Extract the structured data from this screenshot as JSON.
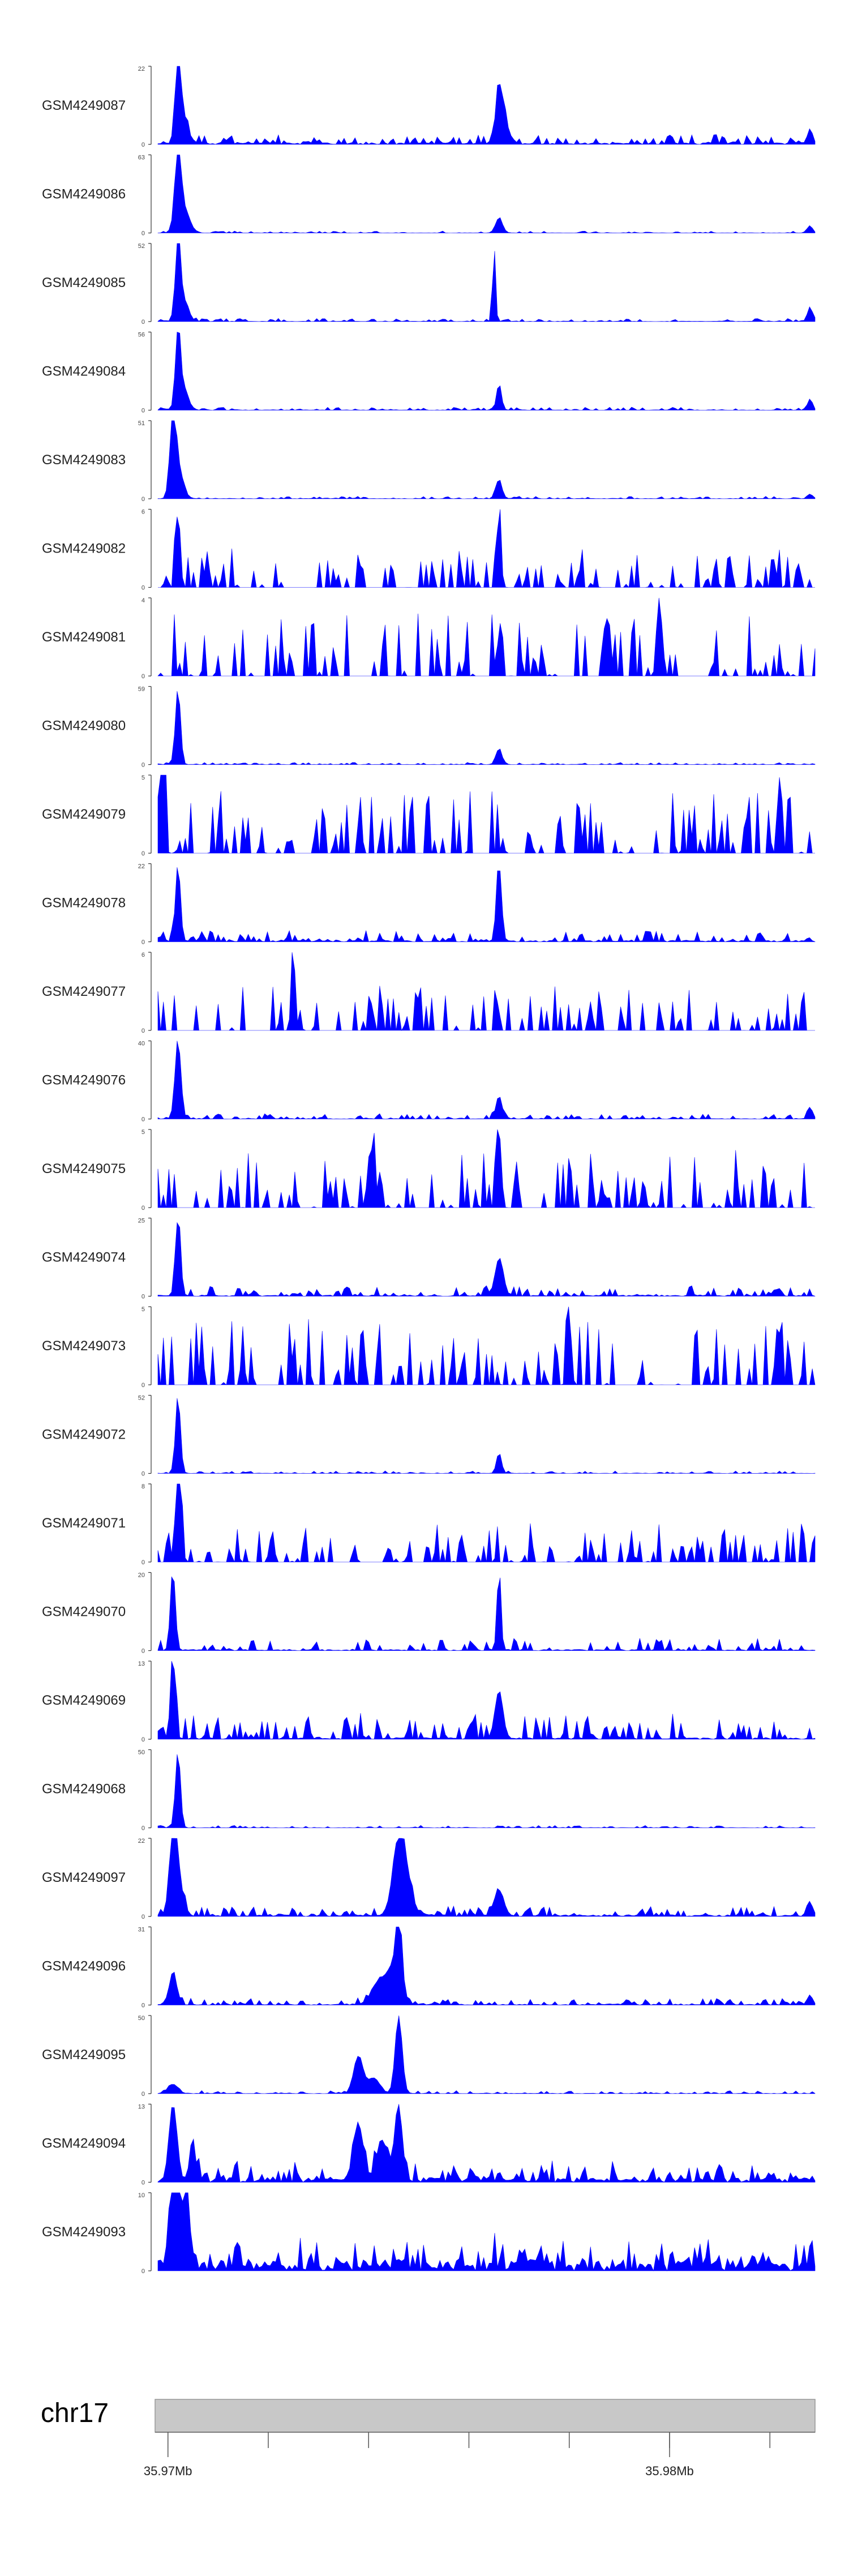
{
  "chart_data": {
    "type": "area",
    "title": "",
    "region": {
      "chromosome": "chr17",
      "xlim_mb": [
        35.9668,
        35.9799
      ]
    },
    "axis": {
      "ticks_mb": [
        35.967,
        35.969,
        35.971,
        35.973,
        35.975,
        35.977,
        35.979
      ],
      "labels": [
        {
          "mb": 35.967,
          "text": "35.97Mb"
        },
        {
          "mb": 35.977,
          "text": "35.98Mb"
        }
      ]
    },
    "tracks": [
      {
        "name": "GSM4249087",
        "ymax": 22,
        "baseline": 0.5,
        "noise": 2.5,
        "seed": 87,
        "peaks": [
          [
            35.9672,
            22,
            5e-05
          ],
          [
            35.9673,
            8,
            0.0001
          ],
          [
            35.9736,
            13,
            7e-05
          ],
          [
            35.9737,
            6,
            0.0001
          ],
          [
            35.9798,
            4,
            5e-05
          ]
        ]
      },
      {
        "name": "GSM4249086",
        "ymax": 63,
        "baseline": 0.2,
        "noise": 1.5,
        "seed": 86,
        "peaks": [
          [
            35.9672,
            63,
            6e-05
          ],
          [
            35.9673,
            20,
            0.00012
          ],
          [
            35.9736,
            12,
            7e-05
          ],
          [
            35.9798,
            6,
            5e-05
          ]
        ]
      },
      {
        "name": "GSM4249085",
        "ymax": 52,
        "baseline": 0.3,
        "noise": 2,
        "seed": 85,
        "peaks": [
          [
            35.9672,
            52,
            5e-05
          ],
          [
            35.9673,
            15,
            0.0001
          ],
          [
            35.9735,
            52,
            3e-05
          ],
          [
            35.9798,
            10,
            5e-05
          ]
        ]
      },
      {
        "name": "GSM4249084",
        "ymax": 56,
        "baseline": 0.3,
        "noise": 2,
        "seed": 84,
        "peaks": [
          [
            35.9672,
            56,
            5e-05
          ],
          [
            35.9673,
            15,
            0.0001
          ],
          [
            35.9736,
            18,
            5e-05
          ],
          [
            35.9798,
            8,
            5e-05
          ]
        ]
      },
      {
        "name": "GSM4249083",
        "ymax": 51,
        "baseline": 0.3,
        "noise": 1.5,
        "seed": 83,
        "peaks": [
          [
            35.9671,
            51,
            6e-05
          ],
          [
            35.9672,
            20,
            0.0001
          ],
          [
            35.9736,
            12,
            6e-05
          ],
          [
            35.9798,
            3,
            5e-05
          ]
        ]
      },
      {
        "name": "GSM4249082",
        "ymax": 6,
        "baseline": 0,
        "noise": 3,
        "seed": 82,
        "peaks": [
          [
            35.9672,
            6,
            4e-05
          ],
          [
            35.9736,
            6,
            4e-05
          ]
        ]
      },
      {
        "name": "GSM4249081",
        "ymax": 4,
        "baseline": 0,
        "noise": 3.2,
        "seed": 81,
        "peaks": [
          [
            35.9768,
            4,
            5e-05
          ]
        ]
      },
      {
        "name": "GSM4249080",
        "ymax": 59,
        "baseline": 0.2,
        "noise": 1.5,
        "seed": 80,
        "peaks": [
          [
            35.9672,
            59,
            5e-05
          ],
          [
            35.9736,
            12,
            6e-05
          ]
        ]
      },
      {
        "name": "GSM4249079",
        "ymax": 5,
        "baseline": 0,
        "noise": 4,
        "seed": 79,
        "peaks": [
          [
            35.9669,
            5,
            4e-05
          ],
          [
            35.9792,
            5,
            4e-05
          ]
        ]
      },
      {
        "name": "GSM4249078",
        "ymax": 22,
        "baseline": 0.4,
        "noise": 3,
        "seed": 78,
        "peaks": [
          [
            35.9672,
            22,
            5e-05
          ],
          [
            35.9736,
            22,
            5e-05
          ]
        ]
      },
      {
        "name": "GSM4249077",
        "ymax": 6,
        "baseline": 0,
        "noise": 3.5,
        "seed": 77,
        "peaks": [
          [
            35.9695,
            6,
            4e-05
          ]
        ]
      },
      {
        "name": "GSM4249076",
        "ymax": 40,
        "baseline": 0.3,
        "noise": 2.5,
        "seed": 76,
        "peaks": [
          [
            35.9672,
            40,
            6e-05
          ],
          [
            35.9736,
            12,
            6e-05
          ],
          [
            35.9798,
            6,
            5e-05
          ]
        ]
      },
      {
        "name": "GSM4249075",
        "ymax": 5,
        "baseline": 0,
        "noise": 3.8,
        "seed": 75,
        "peaks": [
          [
            35.9711,
            5,
            4e-05
          ],
          [
            35.9736,
            5,
            4e-05
          ]
        ]
      },
      {
        "name": "GSM4249074",
        "ymax": 25,
        "baseline": 0.4,
        "noise": 3,
        "seed": 74,
        "peaks": [
          [
            35.9672,
            25,
            5e-05
          ],
          [
            35.9736,
            12,
            8e-05
          ]
        ]
      },
      {
        "name": "GSM4249073",
        "ymax": 5,
        "baseline": 0,
        "noise": 4.2,
        "seed": 73,
        "peaks": [
          [
            35.975,
            5,
            4e-05
          ]
        ]
      },
      {
        "name": "GSM4249072",
        "ymax": 52,
        "baseline": 0.2,
        "noise": 1.5,
        "seed": 72,
        "peaks": [
          [
            35.9672,
            52,
            5e-05
          ],
          [
            35.9736,
            14,
            5e-05
          ]
        ]
      },
      {
        "name": "GSM4249071",
        "ymax": 8,
        "baseline": 0,
        "noise": 4,
        "seed": 71,
        "peaks": [
          [
            35.9672,
            8,
            6e-05
          ]
        ]
      },
      {
        "name": "GSM4249070",
        "ymax": 20,
        "baseline": 0.3,
        "noise": 3,
        "seed": 70,
        "peaks": [
          [
            35.9671,
            20,
            5e-05
          ],
          [
            35.9736,
            20,
            4e-05
          ]
        ]
      },
      {
        "name": "GSM4249069",
        "ymax": 13,
        "baseline": 0.3,
        "noise": 4.2,
        "seed": 69,
        "peaks": [
          [
            35.9671,
            13,
            5e-05
          ],
          [
            35.9736,
            8,
            8e-05
          ]
        ]
      },
      {
        "name": "GSM4249068",
        "ymax": 50,
        "baseline": 0.2,
        "noise": 1.5,
        "seed": 68,
        "peaks": [
          [
            35.9672,
            50,
            5e-05
          ]
        ]
      },
      {
        "name": "GSM4249097",
        "ymax": 22,
        "baseline": 0.5,
        "noise": 2.5,
        "seed": 97,
        "peaks": [
          [
            35.9671,
            22,
            7e-05
          ],
          [
            35.9672,
            10,
            0.0001
          ],
          [
            35.9716,
            16,
            0.00012
          ],
          [
            35.9717,
            10,
            0.00015
          ],
          [
            35.9736,
            7,
            0.0001
          ],
          [
            35.9798,
            4,
            5e-05
          ]
        ]
      },
      {
        "name": "GSM4249096",
        "ymax": 31,
        "baseline": 0.4,
        "noise": 2.5,
        "seed": 96,
        "peaks": [
          [
            35.9671,
            12,
            8e-05
          ],
          [
            35.9712,
            8,
            0.00015
          ],
          [
            35.9716,
            31,
            6e-05
          ],
          [
            35.9715,
            12,
            0.00015
          ],
          [
            35.9798,
            4,
            5e-05
          ]
        ]
      },
      {
        "name": "GSM4249095",
        "ymax": 50,
        "baseline": 0.3,
        "noise": 1.8,
        "seed": 95,
        "peaks": [
          [
            35.9671,
            6,
            0.0001
          ],
          [
            35.9708,
            24,
            9e-05
          ],
          [
            35.9716,
            50,
            7e-05
          ],
          [
            35.9711,
            10,
            0.00012
          ]
        ]
      },
      {
        "name": "GSM4249094",
        "ymax": 13,
        "baseline": 0.8,
        "noise": 3,
        "seed": 94,
        "peaks": [
          [
            35.9671,
            13,
            8e-05
          ],
          [
            35.9675,
            5,
            7e-05
          ],
          [
            35.9708,
            9,
            0.0001
          ],
          [
            35.9716,
            13,
            7e-05
          ],
          [
            35.9713,
            6,
            0.00012
          ]
        ]
      },
      {
        "name": "GSM4249093",
        "ymax": 10,
        "baseline": 1.5,
        "noise": 3.5,
        "seed": 93,
        "peaks": [
          [
            35.9671,
            10,
            8e-05
          ],
          [
            35.9672,
            8,
            0.0001
          ],
          [
            35.9674,
            5,
            8e-05
          ]
        ]
      }
    ]
  },
  "style": {
    "fill": "#0000ff",
    "axis_color": "#333333",
    "ideogram_fill": "#c8c8c8",
    "ideogram_stroke": "#999999"
  }
}
